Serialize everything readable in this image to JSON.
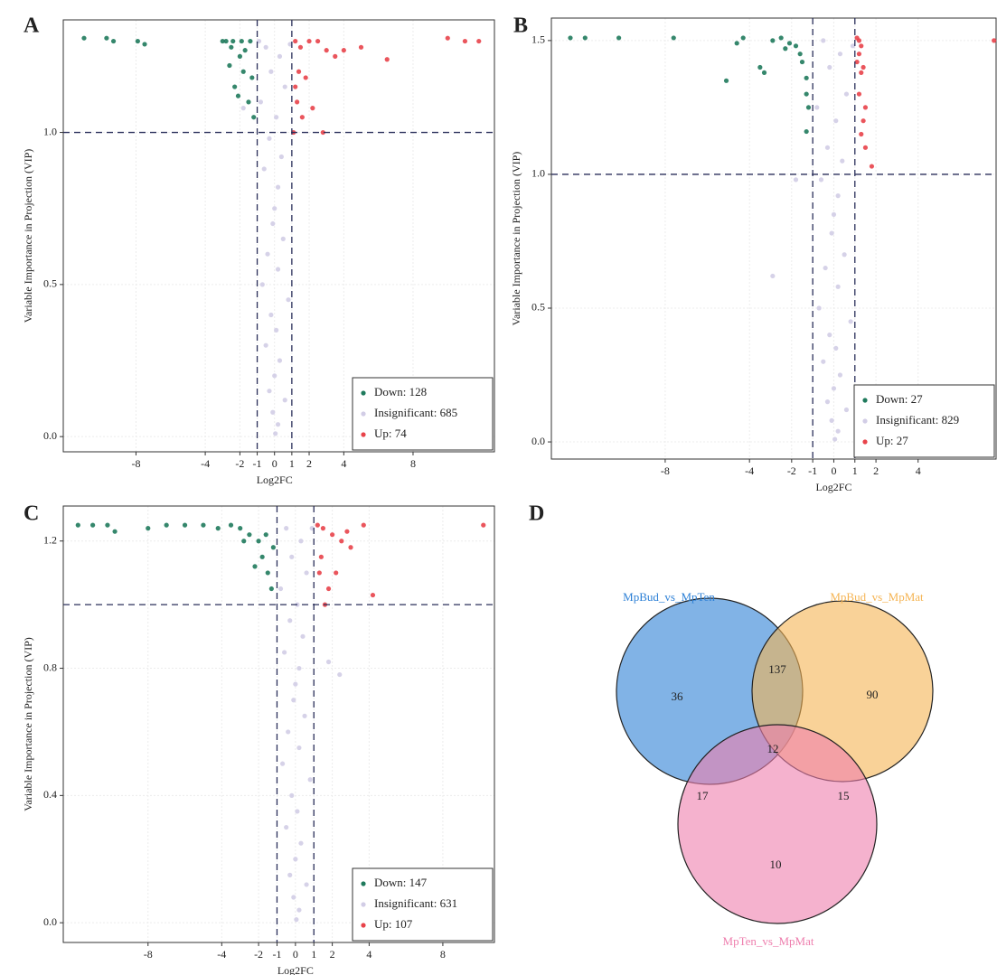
{
  "chart_data": [
    {
      "type": "scatter",
      "panel": "A",
      "xlabel": "Log2FC",
      "ylabel": "Variable Importance in Projection (VIP)",
      "xlim": [
        -12.2,
        12.7
      ],
      "ylim": [
        -0.05,
        1.37
      ],
      "xticks": [
        -8,
        -4,
        -2,
        -1,
        0,
        1,
        2,
        4,
        8
      ],
      "yticks": [
        {
          "value": 0,
          "label": "0.0"
        },
        0.5,
        {
          "value": 1,
          "label": "1.0"
        }
      ],
      "thresholds": {
        "x": [
          -1,
          1
        ],
        "y": 1
      },
      "grid": true,
      "legend": "lower right",
      "series": [
        {
          "name": "Down: 128",
          "color": "#1f7a5c",
          "x": [
            -11,
            -9.7,
            -9.3,
            -7.9,
            -7.5,
            -3,
            -2.5,
            -2,
            -1.8,
            -2.3,
            -1.5,
            -1.2,
            -2.6,
            -1.4,
            -2.1,
            -1.7,
            -2.8,
            -1.3,
            -2.4,
            -1.9
          ],
          "values": [
            1.31,
            1.31,
            1.3,
            1.3,
            1.29,
            1.3,
            1.28,
            1.25,
            1.2,
            1.15,
            1.1,
            1.05,
            1.22,
            1.3,
            1.12,
            1.27,
            1.3,
            1.18,
            1.3,
            1.3
          ]
        },
        {
          "name": "Insignificant: 685",
          "color": "#d2cde6",
          "x": [
            -0.5,
            0.3,
            -0.2,
            0.6,
            -0.8,
            0.1,
            -0.3,
            0.4,
            -0.6,
            0.2,
            0,
            -0.1,
            0.5,
            -0.4,
            0.2,
            -0.7,
            0.8,
            -0.2,
            0.1,
            -0.5,
            0.3,
            0,
            -0.3,
            0.6,
            -0.1,
            0.2,
            -1.8,
            -0.9,
            0.9,
            0.05
          ],
          "values": [
            1.28,
            1.25,
            1.2,
            1.15,
            1.1,
            1.05,
            0.98,
            0.92,
            0.88,
            0.82,
            0.75,
            0.7,
            0.65,
            0.6,
            0.55,
            0.5,
            0.45,
            0.4,
            0.35,
            0.3,
            0.25,
            0.2,
            0.15,
            0.12,
            0.08,
            0.04,
            1.08,
            1.3,
            1.29,
            0.01
          ]
        },
        {
          "name": "Up: 74",
          "color": "#e8434a",
          "x": [
            1.2,
            1.5,
            2,
            2.5,
            3,
            3.5,
            4,
            5,
            6.5,
            10,
            11,
            11.8,
            1.3,
            1.6,
            1.1,
            2.2,
            1.8,
            1.4,
            2.8,
            1.2
          ],
          "values": [
            1.3,
            1.28,
            1.3,
            1.3,
            1.27,
            1.25,
            1.27,
            1.28,
            1.24,
            1.31,
            1.3,
            1.3,
            1.1,
            1.05,
            1,
            1.08,
            1.18,
            1.2,
            1,
            1.15
          ]
        }
      ]
    },
    {
      "type": "scatter",
      "panel": "B",
      "xlabel": "Log2FC",
      "ylabel": "Variable Importance in Projection (VIP)",
      "xlim": [
        -13.4,
        7.7
      ],
      "ylim": [
        -0.064,
        1.584
      ],
      "xticks": [
        -8,
        -4,
        -2,
        -1,
        0,
        1,
        2,
        4
      ],
      "yticks": [
        {
          "value": 0,
          "label": "0.0"
        },
        0.5,
        {
          "value": 1,
          "label": "1.0"
        },
        1.5
      ],
      "thresholds": {
        "x": [
          -1,
          1
        ],
        "y": 1
      },
      "grid": true,
      "legend": "lower right",
      "series": [
        {
          "name": "Down: 27",
          "color": "#1f7a5c",
          "x": [
            -12.5,
            -11.8,
            -10.2,
            -7.6,
            -4.3,
            -4.6,
            -5.1,
            -3.5,
            -3.3,
            -2.9,
            -2.5,
            -2.1,
            -1.8,
            -1.6,
            -1.3,
            -1.3,
            -1.2,
            -1.3,
            -1.5,
            -2.3
          ],
          "values": [
            1.51,
            1.51,
            1.51,
            1.51,
            1.51,
            1.49,
            1.35,
            1.4,
            1.38,
            1.5,
            1.51,
            1.49,
            1.48,
            1.45,
            1.36,
            1.3,
            1.25,
            1.16,
            1.42,
            1.47
          ]
        },
        {
          "name": "Insignificant: 829",
          "color": "#d2cde6",
          "x": [
            -0.5,
            0.3,
            -0.2,
            0.6,
            -0.8,
            0.1,
            -0.3,
            0.4,
            -0.6,
            0.2,
            0,
            -0.1,
            0.5,
            -0.4,
            0.2,
            -0.7,
            0.8,
            -0.2,
            0.1,
            -0.5,
            0.3,
            0,
            -0.3,
            0.6,
            -0.1,
            0.2,
            -1.8,
            -2.9,
            0.9,
            0.05
          ],
          "values": [
            1.5,
            1.45,
            1.4,
            1.3,
            1.25,
            1.2,
            1.1,
            1.05,
            0.98,
            0.92,
            0.85,
            0.78,
            0.7,
            0.65,
            0.58,
            0.5,
            0.45,
            0.4,
            0.35,
            0.3,
            0.25,
            0.2,
            0.15,
            0.12,
            0.08,
            0.04,
            0.98,
            0.62,
            1.48,
            0.01
          ]
        },
        {
          "name": "Up: 27",
          "color": "#e8434a",
          "x": [
            1.1,
            1.2,
            1.3,
            1.2,
            1.4,
            1.3,
            1.2,
            1.5,
            1.4,
            1.3,
            1.5,
            1.8,
            7.6,
            1.1
          ],
          "values": [
            1.51,
            1.5,
            1.48,
            1.45,
            1.4,
            1.38,
            1.3,
            1.25,
            1.2,
            1.15,
            1.1,
            1.03,
            1.5,
            1.42
          ]
        }
      ]
    },
    {
      "type": "scatter",
      "panel": "C",
      "xlabel": "Log2FC",
      "ylabel": "Variable Importance in Projection (VIP)",
      "xlim": [
        -12.6,
        10.8
      ],
      "ylim": [
        -0.062,
        1.31
      ],
      "xticks": [
        -8,
        -4,
        -2,
        -1,
        0,
        1,
        2,
        4,
        8
      ],
      "yticks": [
        {
          "value": 0,
          "label": "0.0"
        },
        0.4,
        0.8,
        1.2
      ],
      "thresholds": {
        "x": [
          -1,
          1
        ],
        "y": 1
      },
      "grid": true,
      "legend": "lower right",
      "series": [
        {
          "name": "Down: 147",
          "color": "#1f7a5c",
          "x": [
            -11.8,
            -11,
            -10.2,
            -9.8,
            -8,
            -7,
            -6,
            -5,
            -4.2,
            -3.5,
            -3,
            -2.5,
            -2,
            -1.8,
            -1.5,
            -1.3,
            -2.2,
            -1.6,
            -1.2,
            -2.8
          ],
          "values": [
            1.25,
            1.25,
            1.25,
            1.23,
            1.24,
            1.25,
            1.25,
            1.25,
            1.24,
            1.25,
            1.24,
            1.22,
            1.2,
            1.15,
            1.1,
            1.05,
            1.12,
            1.22,
            1.18,
            1.2
          ]
        },
        {
          "name": "Insignificant: 631",
          "color": "#d2cde6",
          "x": [
            -0.5,
            0.3,
            -0.2,
            0.6,
            -0.8,
            0.1,
            -0.3,
            0.4,
            -0.6,
            0.2,
            0,
            -0.1,
            0.5,
            -0.4,
            0.2,
            -0.7,
            0.8,
            -0.2,
            0.1,
            -0.5,
            0.3,
            0,
            -0.3,
            0.6,
            -0.1,
            0.2,
            1.8,
            2.4,
            0.9,
            0.05
          ],
          "values": [
            1.24,
            1.2,
            1.15,
            1.1,
            1.05,
            1.0,
            0.95,
            0.9,
            0.85,
            0.8,
            0.75,
            0.7,
            0.65,
            0.6,
            0.55,
            0.5,
            0.45,
            0.4,
            0.35,
            0.3,
            0.25,
            0.2,
            0.15,
            0.12,
            0.08,
            0.04,
            0.82,
            0.78,
            1.24,
            0.01
          ]
        },
        {
          "name": "Up: 107",
          "color": "#e8434a",
          "x": [
            1.2,
            1.5,
            2,
            2.5,
            3,
            3.7,
            4.2,
            10.2,
            1.3,
            1.6,
            1.4,
            2.2,
            1.8,
            2.8
          ],
          "values": [
            1.25,
            1.24,
            1.22,
            1.2,
            1.18,
            1.25,
            1.03,
            1.25,
            1.1,
            1,
            1.15,
            1.1,
            1.05,
            1.23
          ]
        }
      ]
    },
    {
      "type": "venn",
      "panel": "D",
      "sets": [
        {
          "name": "MpBud_vs_MpTen",
          "color": "#2d80d6"
        },
        {
          "name": "MpBud_vs_MpMat",
          "color": "#f5b453"
        },
        {
          "name": "MpTen_vs_MpMat",
          "color": "#ee7fae"
        }
      ],
      "values": [
        36,
        137,
        90,
        17,
        12,
        15,
        10
      ]
    }
  ]
}
